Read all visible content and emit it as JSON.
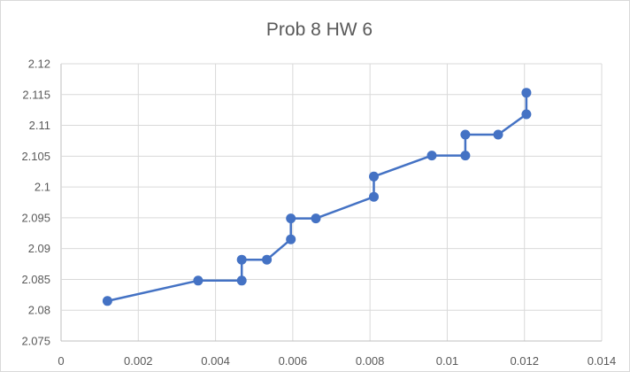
{
  "colors": {
    "series": "#4472c4",
    "grid": "#d9d9d9",
    "axis": "#bfbfbf",
    "text": "#595959"
  },
  "chart_data": {
    "type": "scatter",
    "title": "Prob 8 HW 6",
    "xlabel": "",
    "ylabel": "",
    "xlim": [
      0,
      0.014
    ],
    "ylim": [
      2.075,
      2.12
    ],
    "grid": true,
    "legend": "none",
    "x_ticks": [
      "0",
      "0.002",
      "0.004",
      "0.006",
      "0.008",
      "0.01",
      "0.012",
      "0.014"
    ],
    "y_ticks": [
      "2.075",
      "2.08",
      "2.085",
      "2.09",
      "2.095",
      "2.1",
      "2.105",
      "2.11",
      "2.115",
      "2.12"
    ],
    "series": [
      {
        "markers": true,
        "lines": true,
        "x": [
          0.0012,
          0.00355,
          0.00468,
          0.00468,
          0.00533,
          0.00595,
          0.00595,
          0.0066,
          0.0081,
          0.0081,
          0.0096,
          0.01047,
          0.01047,
          0.01132,
          0.01205,
          0.01205
        ],
        "y": [
          2.0815,
          2.0848,
          2.0848,
          2.0882,
          2.0882,
          2.0915,
          2.0949,
          2.0949,
          2.0984,
          2.1017,
          2.1051,
          2.1051,
          2.1085,
          2.1085,
          2.1118,
          2.1153
        ]
      }
    ]
  }
}
